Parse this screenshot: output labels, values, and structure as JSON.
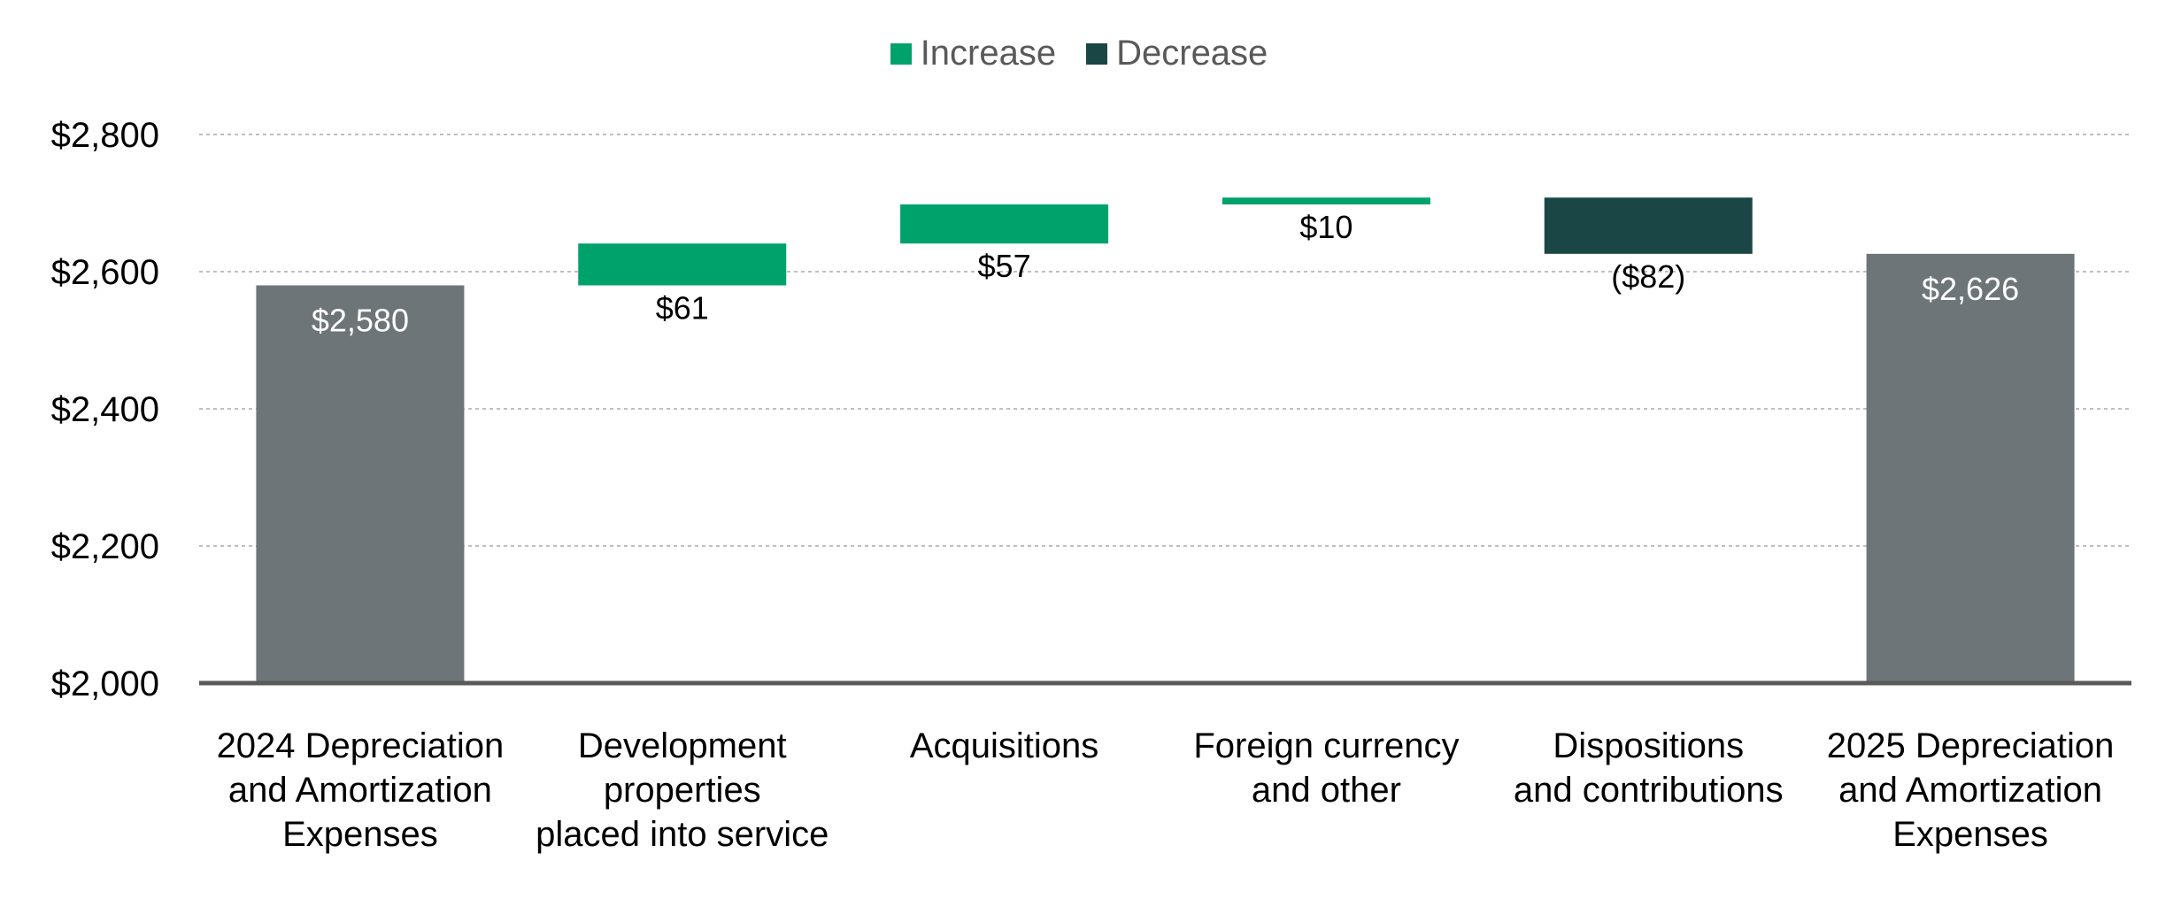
{
  "chart_data": {
    "type": "waterfall",
    "title": "",
    "xlabel": "",
    "ylabel": "",
    "ylim": [
      2000,
      2800
    ],
    "yticks": [
      2000,
      2200,
      2400,
      2600,
      2800
    ],
    "ytick_labels": [
      "$2,000",
      "$2,200",
      "$2,400",
      "$2,600",
      "$2,800"
    ],
    "grid": true,
    "legend_position": "top-center",
    "legend": [
      {
        "label": "Increase",
        "color": "#00A26B"
      },
      {
        "label": "Decrease",
        "color": "#1A4646"
      }
    ],
    "total_color": "#6E7579",
    "steps": [
      {
        "category": [
          "2024 Depreciation",
          "and Amortization",
          "Expenses"
        ],
        "kind": "total",
        "value": 2580,
        "label": "$2,580"
      },
      {
        "category": [
          "Development",
          "properties",
          "placed into service"
        ],
        "kind": "increase",
        "value": 61,
        "label": "$61"
      },
      {
        "category": [
          "Acquisitions"
        ],
        "kind": "increase",
        "value": 57,
        "label": "$57"
      },
      {
        "category": [
          "Foreign currency",
          "and other"
        ],
        "kind": "increase",
        "value": 10,
        "label": "$10"
      },
      {
        "category": [
          "Dispositions",
          "and contributions"
        ],
        "kind": "decrease",
        "value": -82,
        "label": "($82)"
      },
      {
        "category": [
          "2025 Depreciation",
          "and Amortization",
          "Expenses"
        ],
        "kind": "total",
        "value": 2626,
        "label": "$2,626"
      }
    ]
  }
}
